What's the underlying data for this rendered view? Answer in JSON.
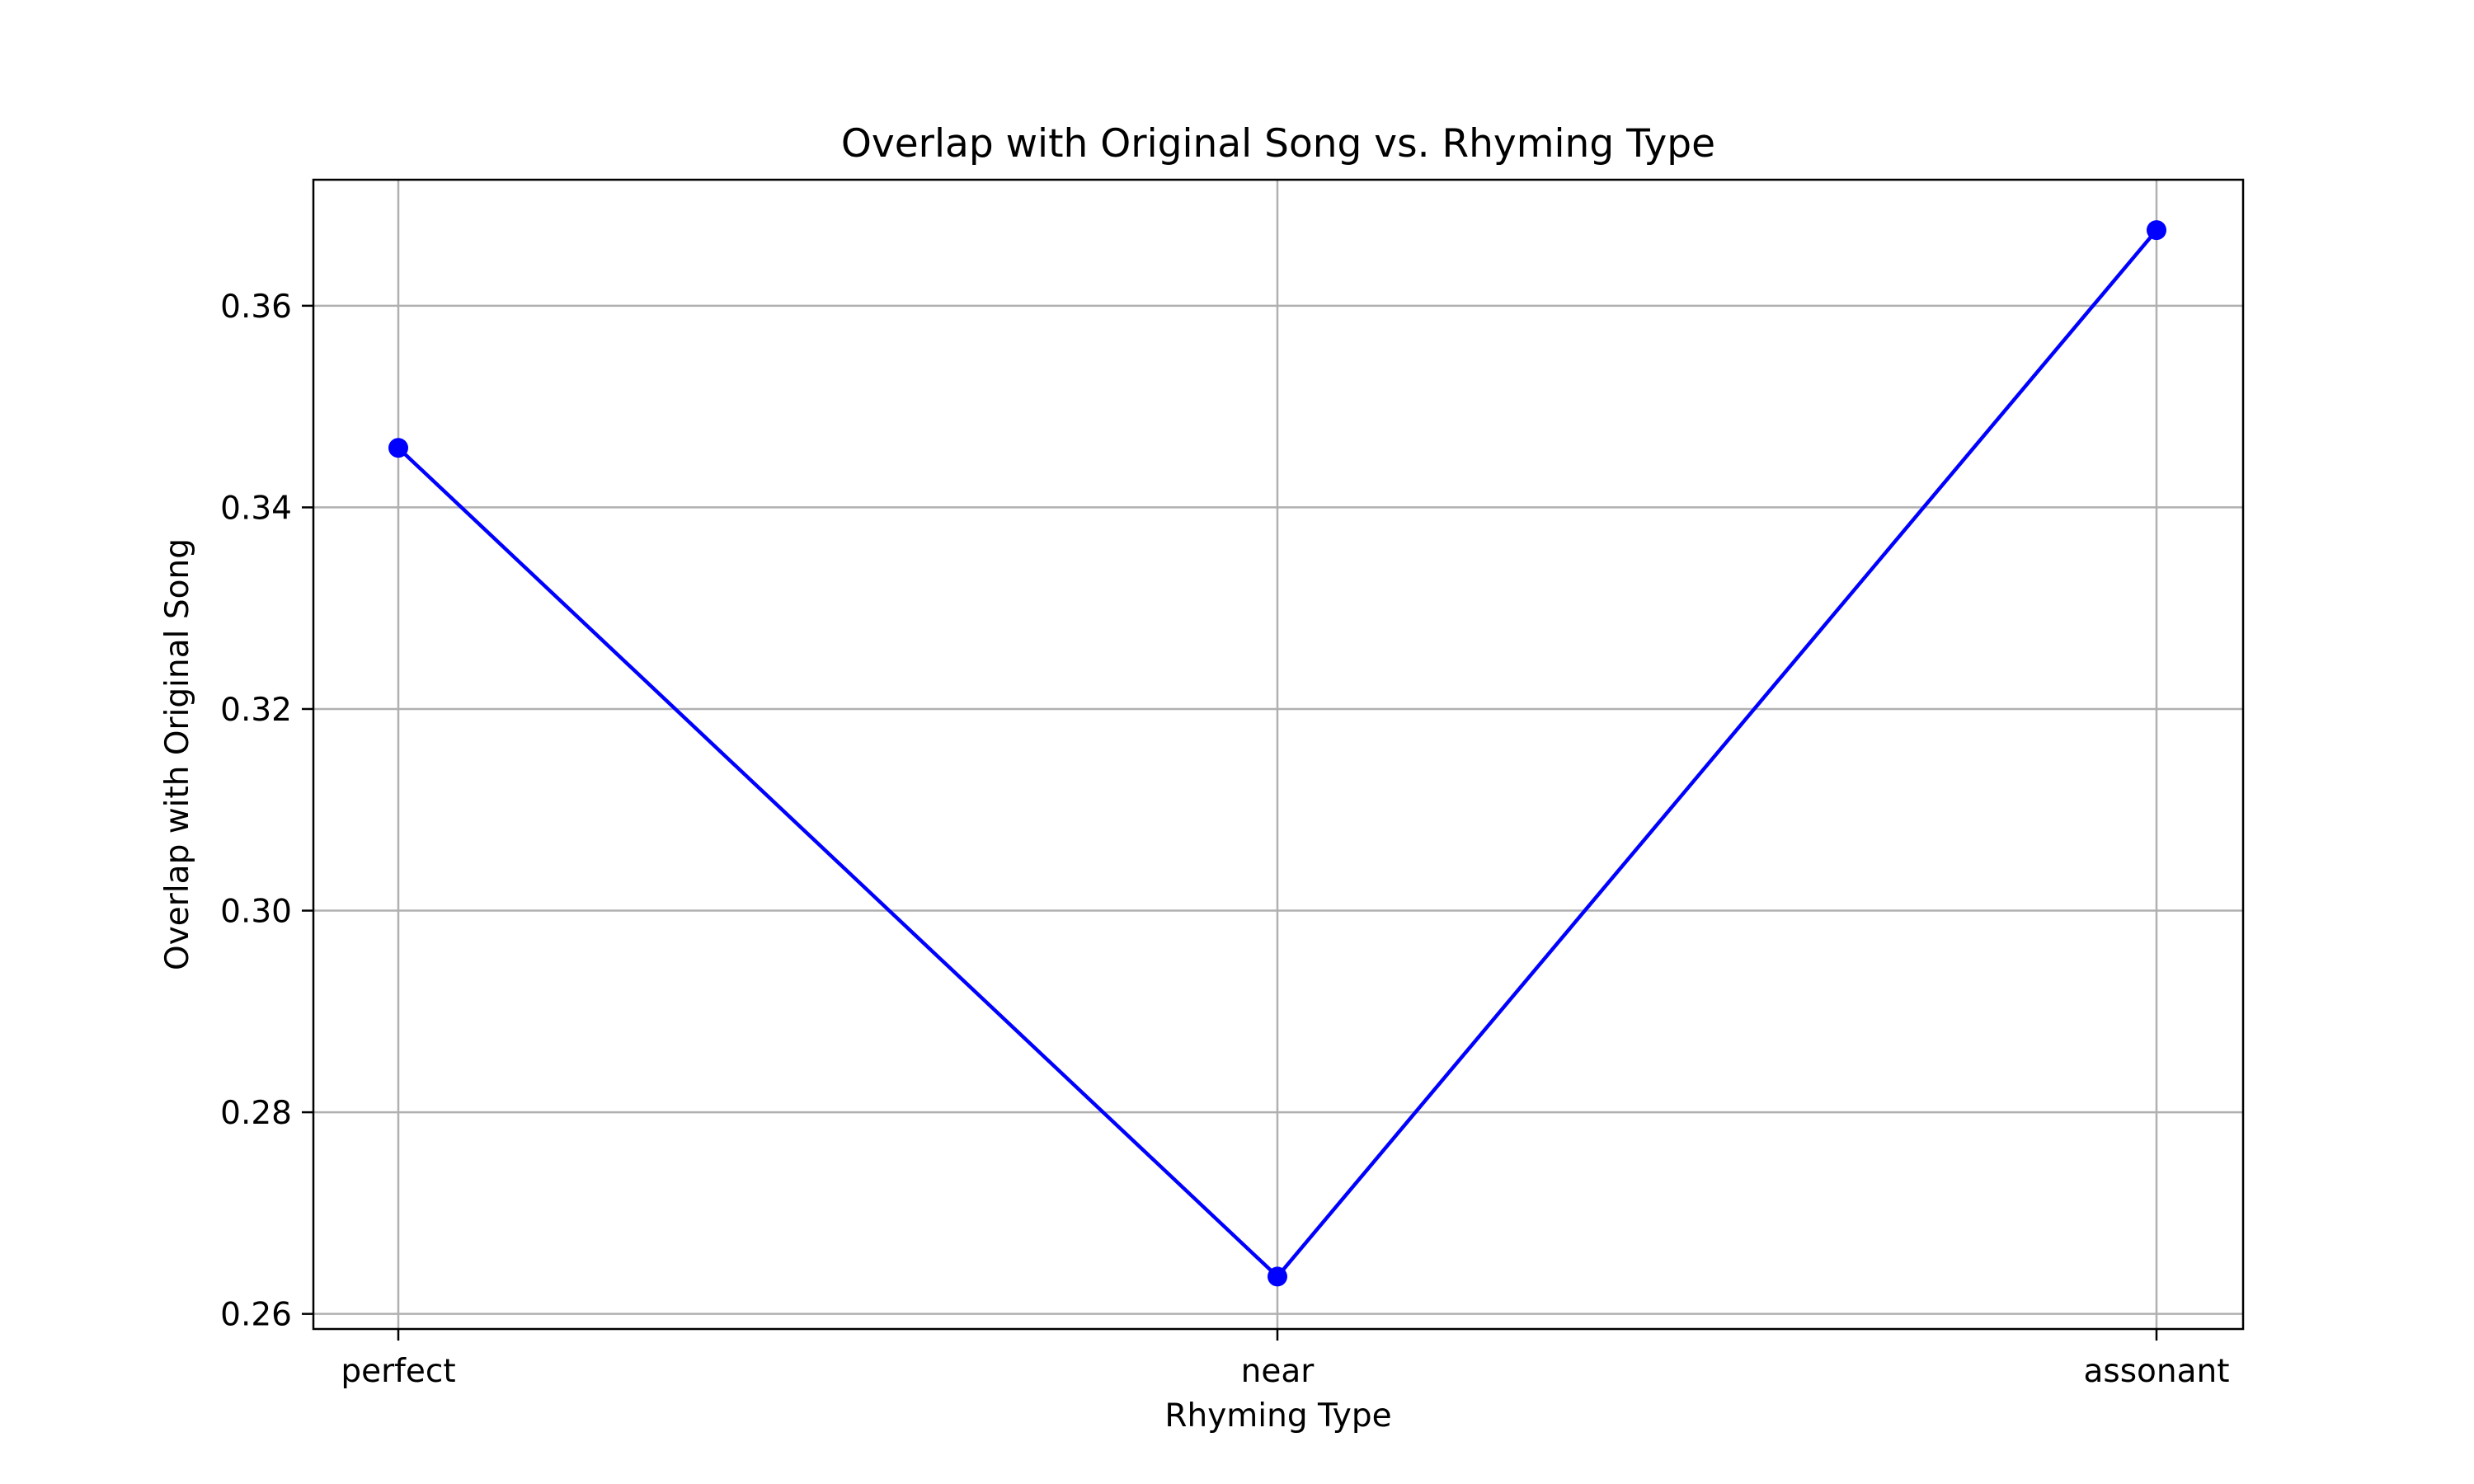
{
  "chart_data": {
    "type": "line",
    "title": "Overlap with Original Song vs. Rhyming Type",
    "xlabel": "Rhyming Type",
    "ylabel": "Overlap with Original Song",
    "categories": [
      "perfect",
      "near",
      "assonant"
    ],
    "series": [
      {
        "values": [
          0.3459,
          0.2637,
          0.3675
        ]
      }
    ],
    "ylim": [
      0.2585,
      0.3725
    ],
    "yticks": [
      0.26,
      0.28,
      0.3,
      0.32,
      0.34,
      0.36
    ],
    "ytick_labels": [
      "0.26",
      "0.28",
      "0.30",
      "0.32",
      "0.34",
      "0.36"
    ],
    "grid": true,
    "marker": "circle",
    "line_color": "#0000ff"
  }
}
